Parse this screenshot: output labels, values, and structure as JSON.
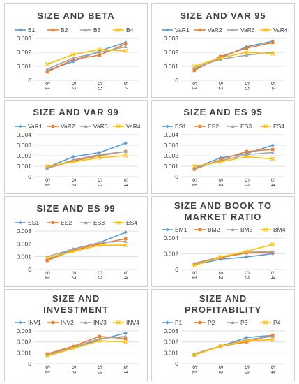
{
  "colors": [
    "#5b9bd5",
    "#ed7d31",
    "#a5a5a5",
    "#ffc000"
  ],
  "markers": [
    "diamond",
    "square",
    "triangle",
    "x"
  ],
  "chart_data": [
    {
      "type": "line",
      "title": "SIZE AND BETA",
      "categories": [
        "S 1",
        "S 2",
        "S 3",
        "S 4"
      ],
      "ylim": [
        0,
        0.003
      ],
      "yticks": [
        0,
        0.001,
        0.002,
        0.003
      ],
      "ytick_labels": [
        "0",
        "0.001",
        "0.002",
        "0.003"
      ],
      "legend_position": "top",
      "series": [
        {
          "name": "B1",
          "values": [
            0.0007,
            0.00135,
            0.0021,
            0.0027
          ]
        },
        {
          "name": "B2",
          "values": [
            0.0006,
            0.0015,
            0.0018,
            0.0026
          ]
        },
        {
          "name": "B3",
          "values": [
            0.0008,
            0.0016,
            0.002,
            0.0024
          ]
        },
        {
          "name": "B4",
          "values": [
            0.00115,
            0.00185,
            0.0022,
            0.0021
          ]
        }
      ]
    },
    {
      "type": "line",
      "title": "SIZE AND VAR 95",
      "categories": [
        "S 1",
        "S 2",
        "S 3",
        "S 4"
      ],
      "ylim": [
        0,
        0.003
      ],
      "yticks": [
        0,
        0.001,
        0.002,
        0.003
      ],
      "ytick_labels": [
        "0",
        "0.001",
        "0.002",
        "0.003"
      ],
      "legend_position": "top",
      "series": [
        {
          "name": "VaR1",
          "values": [
            0.0008,
            0.0016,
            0.0024,
            0.0028
          ]
        },
        {
          "name": "VaR2",
          "values": [
            0.0007,
            0.0017,
            0.0023,
            0.0027
          ]
        },
        {
          "name": "VaR3",
          "values": [
            0.0009,
            0.0015,
            0.0018,
            0.002
          ]
        },
        {
          "name": "VaR4",
          "values": [
            0.001,
            0.0016,
            0.002,
            0.0019
          ]
        }
      ]
    },
    {
      "type": "line",
      "title": "SIZE AND VAR 99",
      "categories": [
        "S 1",
        "S 2",
        "S 3",
        "S 4"
      ],
      "ylim": [
        0,
        0.004
      ],
      "yticks": [
        0,
        0.001,
        0.002,
        0.003,
        0.004
      ],
      "ytick_labels": [
        "0",
        "0.001",
        "0.002",
        "0.003",
        "0.004"
      ],
      "legend_position": "top",
      "series": [
        {
          "name": "VaR1",
          "values": [
            0.0009,
            0.0019,
            0.0023,
            0.0032
          ]
        },
        {
          "name": "VaR2",
          "values": [
            0.0008,
            0.0015,
            0.002,
            0.0024
          ]
        },
        {
          "name": "VaR3",
          "values": [
            0.0008,
            0.0016,
            0.0021,
            0.0024
          ]
        },
        {
          "name": "VaR4",
          "values": [
            0.001,
            0.0014,
            0.0018,
            0.002
          ]
        }
      ]
    },
    {
      "type": "line",
      "title": "SIZE AND ES 95",
      "categories": [
        "S 1",
        "S 2",
        "S 3",
        "S 4"
      ],
      "ylim": [
        0,
        0.004
      ],
      "yticks": [
        0,
        0.001,
        0.002,
        0.003,
        0.004
      ],
      "ytick_labels": [
        "0",
        "0.001",
        "0.002",
        "0.003",
        "0.004"
      ],
      "legend_position": "top",
      "series": [
        {
          "name": "ES1",
          "values": [
            0.0008,
            0.0018,
            0.0022,
            0.003
          ]
        },
        {
          "name": "ES2",
          "values": [
            0.0007,
            0.0016,
            0.0024,
            0.0026
          ]
        },
        {
          "name": "ES3",
          "values": [
            0.0008,
            0.0015,
            0.0021,
            0.0023
          ]
        },
        {
          "name": "ES4",
          "values": [
            0.001,
            0.0014,
            0.0019,
            0.0017
          ]
        }
      ]
    },
    {
      "type": "line",
      "title": "SIZE AND ES 99",
      "categories": [
        "S 1",
        "S 2",
        "S 3",
        "S 4"
      ],
      "ylim": [
        0,
        0.003
      ],
      "yticks": [
        0,
        0.001,
        0.002,
        0.003
      ],
      "ytick_labels": [
        "0",
        "0.001",
        "0.002",
        "0.003"
      ],
      "legend_position": "top",
      "series": [
        {
          "name": "ES1",
          "values": [
            0.0008,
            0.0016,
            0.0021,
            0.0029
          ]
        },
        {
          "name": "ES2",
          "values": [
            0.0007,
            0.0015,
            0.002,
            0.0024
          ]
        },
        {
          "name": "ES3",
          "values": [
            0.001,
            0.0016,
            0.0021,
            0.0022
          ]
        },
        {
          "name": "ES4",
          "values": [
            0.0009,
            0.0014,
            0.0019,
            0.0019
          ]
        }
      ]
    },
    {
      "type": "line",
      "title": "SIZE AND BOOK TO MARKET RATIO",
      "title_lines": [
        "SIZE AND BOOK TO",
        "MARKET RATIO"
      ],
      "categories": [
        "S 1",
        "S 2",
        "S 3",
        "S 4"
      ],
      "ylim": [
        0,
        0.004
      ],
      "yticks": [
        0,
        0.002,
        0.004
      ],
      "ytick_labels": [
        "0",
        "0.002",
        "0.004"
      ],
      "legend_position": "top",
      "series": [
        {
          "name": "BM1",
          "values": [
            0.0006,
            0.0013,
            0.0016,
            0.002
          ]
        },
        {
          "name": "BM2",
          "values": [
            0.0007,
            0.0015,
            0.0021,
            0.0022
          ]
        },
        {
          "name": "BM3",
          "values": [
            0.0008,
            0.0016,
            0.0022,
            0.0023
          ]
        },
        {
          "name": "BM4",
          "values": [
            0.0005,
            0.0016,
            0.0023,
            0.0032
          ]
        }
      ]
    },
    {
      "type": "line",
      "title": "SIZE AND INVESTMENT",
      "title_lines": [
        "SIZE AND",
        "INVESTMENT"
      ],
      "categories": [
        "S 1",
        "S 2",
        "S 3",
        "S 4"
      ],
      "ylim": [
        0,
        0.003
      ],
      "yticks": [
        0,
        0.001,
        0.002,
        0.003
      ],
      "ytick_labels": [
        "0",
        "0.001",
        "0.002",
        "0.003"
      ],
      "legend_position": "top",
      "series": [
        {
          "name": "INV1",
          "values": [
            0.0008,
            0.0015,
            0.0022,
            0.0028
          ]
        },
        {
          "name": "INV2",
          "values": [
            0.0009,
            0.0016,
            0.0025,
            0.0023
          ]
        },
        {
          "name": "INV3",
          "values": [
            0.0008,
            0.0015,
            0.0023,
            0.0025
          ]
        },
        {
          "name": "INV4",
          "values": [
            0.0007,
            0.0014,
            0.0021,
            0.002
          ]
        }
      ]
    },
    {
      "type": "line",
      "title": "SIZE AND PROFITABILITY",
      "title_lines": [
        "SIZE AND",
        "PROFITABILITY"
      ],
      "categories": [
        "S 1",
        "S 2",
        "S 3",
        "S 4"
      ],
      "ylim": [
        0,
        0.003
      ],
      "yticks": [
        0,
        0.001,
        0.002,
        0.003
      ],
      "ytick_labels": [
        "0",
        "0.001",
        "0.002",
        "0.003"
      ],
      "legend_position": "top",
      "series": [
        {
          "name": "P1",
          "values": [
            0.0009,
            0.0016,
            0.0024,
            0.0026
          ]
        },
        {
          "name": "P2",
          "values": [
            0.0008,
            0.0016,
            0.002,
            0.0026
          ]
        },
        {
          "name": "P3",
          "values": [
            0.0009,
            0.0016,
            0.0022,
            0.0025
          ]
        },
        {
          "name": "P4",
          "values": [
            0.0008,
            0.0016,
            0.0021,
            0.0022
          ]
        }
      ]
    }
  ]
}
